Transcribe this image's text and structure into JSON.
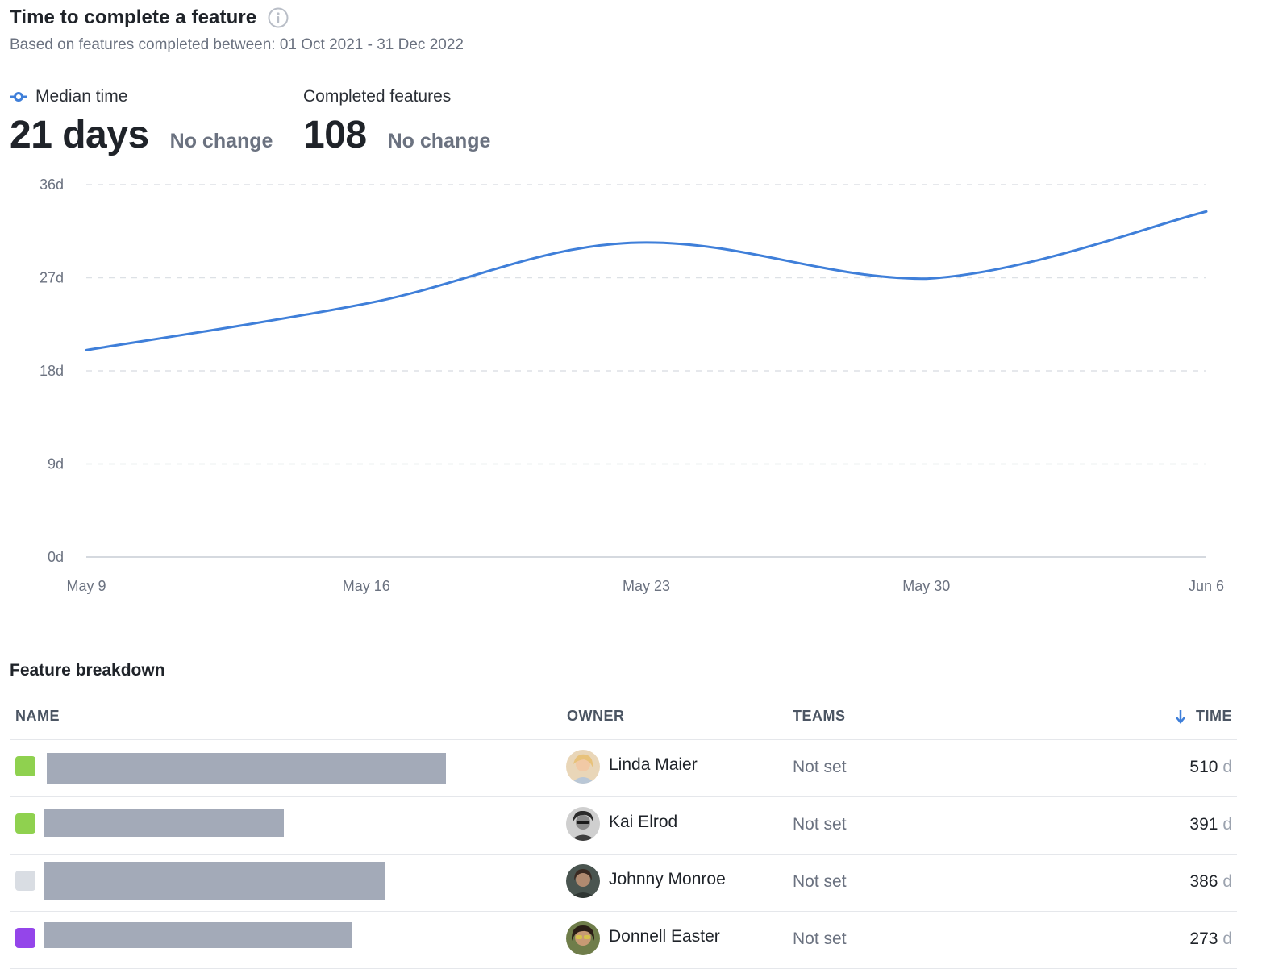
{
  "header": {
    "title": "Time to complete a feature",
    "subtitle": "Based on features completed between: 01 Oct 2021 - 31 Dec 2022"
  },
  "metrics": {
    "median": {
      "label": "Median time",
      "value": "21 days",
      "change": "No change"
    },
    "completed": {
      "label": "Completed features",
      "value": "108",
      "change": "No change"
    }
  },
  "chart_data": {
    "type": "line",
    "x": [
      "May 9",
      "May 16",
      "May 23",
      "May 30",
      "Jun 6"
    ],
    "series": [
      {
        "name": "Median time",
        "values": [
          20,
          24.5,
          30.4,
          26.9,
          33.4
        ]
      }
    ],
    "y_ticks": [
      "0d",
      "9d",
      "18d",
      "27d",
      "36d"
    ],
    "ylim": [
      0,
      36
    ],
    "grid": true,
    "color": "#3f7fd9"
  },
  "table": {
    "title": "Feature breakdown",
    "columns": {
      "name": "NAME",
      "owner": "OWNER",
      "teams": "TEAMS",
      "time": "TIME"
    },
    "rows": [
      {
        "swatch": "#8fd14f",
        "owner": "Linda Maier",
        "teams": "Not set",
        "time": "510",
        "unit": "d"
      },
      {
        "swatch": "#8fd14f",
        "owner": "Kai Elrod",
        "teams": "Not set",
        "time": "391",
        "unit": "d"
      },
      {
        "swatch": "#d9dde3",
        "owner": "Johnny Monroe",
        "teams": "Not set",
        "time": "386",
        "unit": "d"
      },
      {
        "swatch": "#9445ea",
        "owner": "Donnell Easter",
        "teams": "Not set",
        "time": "273",
        "unit": "d"
      }
    ]
  },
  "icons": {
    "info": "info-icon",
    "sort": "arrow-down-icon",
    "legend": "line-marker-icon"
  }
}
